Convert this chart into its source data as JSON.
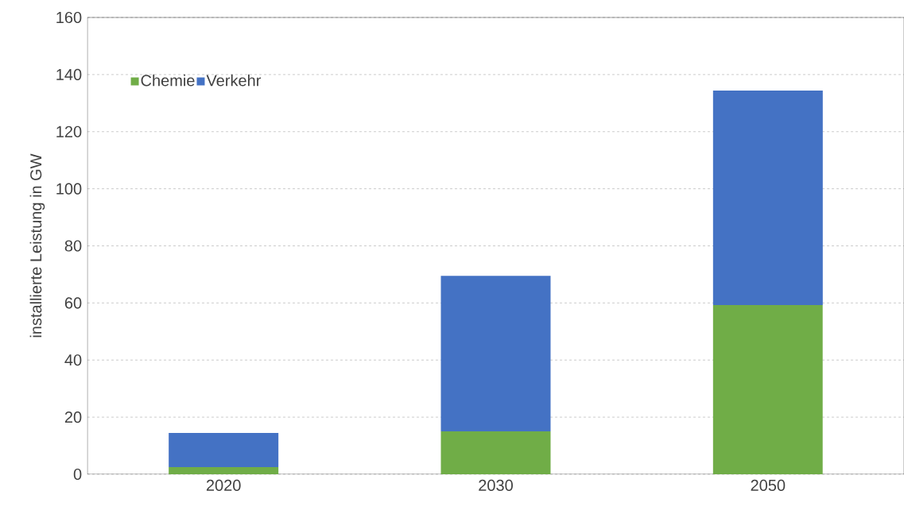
{
  "chart_data": {
    "type": "bar",
    "stacked": true,
    "ylabel": "installierte Leistung in GW",
    "categories": [
      "2020",
      "2030",
      "2050"
    ],
    "series": [
      {
        "name": "Chemie",
        "color": "#70ad47",
        "values": [
          2.5,
          15,
          59.3
        ]
      },
      {
        "name": "Verkehr",
        "color": "#4472c4",
        "values": [
          12,
          54.5,
          75.1
        ]
      }
    ],
    "ylim": [
      0,
      160
    ],
    "yticks": [
      0,
      20,
      40,
      60,
      80,
      100,
      120,
      140,
      160
    ],
    "grid": "y",
    "legend": "top left"
  }
}
